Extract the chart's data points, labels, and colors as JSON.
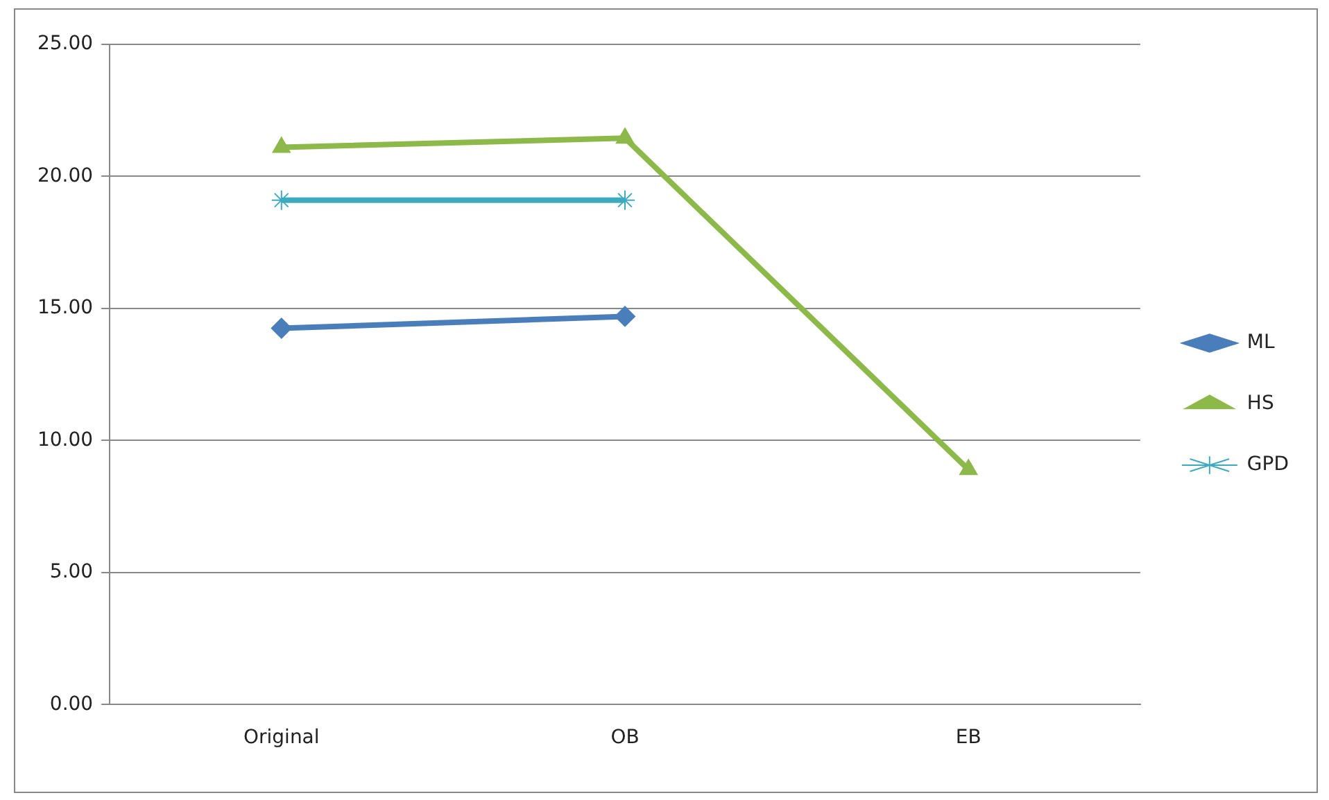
{
  "chart_data": {
    "type": "line",
    "categories": [
      "Original",
      "OB",
      "EB"
    ],
    "series": [
      {
        "name": "ML",
        "color": "#4a7ebb",
        "marker": "diamond",
        "values": [
          14.25,
          14.7,
          null
        ]
      },
      {
        "name": "HS",
        "color": "#8db84a",
        "marker": "triangle",
        "values": [
          21.1,
          21.45,
          8.9
        ]
      },
      {
        "name": "GPD",
        "color": "#3eaac0",
        "marker": "cross",
        "values": [
          19.1,
          19.1,
          null
        ]
      }
    ],
    "ylim": [
      0,
      25
    ],
    "yticks": [
      {
        "value": 0,
        "label": "0.00"
      },
      {
        "value": 5,
        "label": "5.00"
      },
      {
        "value": 10,
        "label": "10.00"
      },
      {
        "value": 15,
        "label": "15.00"
      },
      {
        "value": 20,
        "label": "20.00"
      },
      {
        "value": 25,
        "label": "25.00"
      }
    ],
    "grid": "y",
    "legend": "right"
  }
}
